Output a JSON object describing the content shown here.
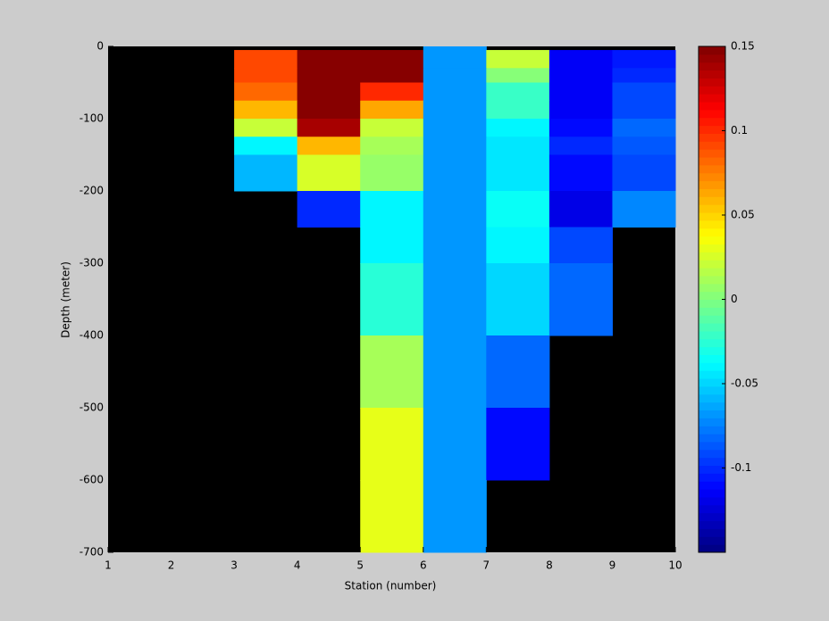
{
  "chart_data": {
    "type": "heatmap",
    "xlabel": "Station (number)",
    "ylabel": "Depth (meter)",
    "x": [
      1,
      2,
      3,
      4,
      5,
      6,
      7,
      8,
      9,
      10
    ],
    "y": [
      0,
      -5,
      -30,
      -50,
      -75,
      -100,
      -125,
      -150,
      -200,
      -250,
      -300,
      -400,
      -500,
      -600,
      -700
    ],
    "values": [
      [
        null,
        null,
        null,
        null,
        null,
        -0.07,
        null,
        null,
        null
      ],
      [
        null,
        null,
        0.09,
        0.15,
        0.15,
        -0.07,
        0.02,
        -0.115,
        -0.105
      ],
      [
        null,
        null,
        0.09,
        0.15,
        0.15,
        -0.07,
        0,
        -0.115,
        -0.1
      ],
      [
        null,
        null,
        0.08,
        0.15,
        0.1,
        -0.07,
        -0.02,
        -0.115,
        -0.09
      ],
      [
        null,
        null,
        0.06,
        0.15,
        0.065,
        -0.07,
        -0.02,
        -0.115,
        -0.09
      ],
      [
        null,
        null,
        0.02,
        0.14,
        0.02,
        -0.07,
        -0.04,
        -0.11,
        -0.08
      ],
      [
        null,
        null,
        -0.04,
        0.06,
        0.01,
        -0.07,
        -0.045,
        -0.1,
        -0.085
      ],
      [
        null,
        null,
        -0.06,
        0.025,
        0.005,
        -0.07,
        -0.045,
        -0.11,
        -0.09
      ],
      [
        null,
        null,
        null,
        -0.1,
        -0.04,
        -0.07,
        -0.035,
        -0.12,
        -0.075
      ],
      [
        null,
        null,
        null,
        null,
        -0.04,
        -0.07,
        -0.04,
        -0.09,
        null
      ],
      [
        null,
        null,
        null,
        null,
        -0.025,
        -0.07,
        -0.05,
        -0.08,
        null
      ],
      [
        null,
        null,
        null,
        null,
        0.01,
        -0.07,
        -0.08,
        null,
        null
      ],
      [
        null,
        null,
        null,
        null,
        0.03,
        -0.07,
        -0.11,
        null,
        null
      ],
      [
        null,
        null,
        null,
        null,
        0.03,
        -0.07,
        null,
        null,
        null
      ]
    ],
    "xlim": [
      1,
      10
    ],
    "xticks": [
      1,
      2,
      3,
      4,
      5,
      6,
      7,
      8,
      9,
      10
    ],
    "ylim": [
      -700,
      0
    ],
    "yticks": [
      0,
      -100,
      -200,
      -300,
      -400,
      -500,
      -600,
      -700
    ],
    "clim": [
      -0.15,
      0.15
    ],
    "cticks": [
      0.15,
      0.1,
      0.05,
      0,
      -0.05,
      -0.1
    ],
    "colormap": "jet",
    "missing_color": "#000000"
  }
}
